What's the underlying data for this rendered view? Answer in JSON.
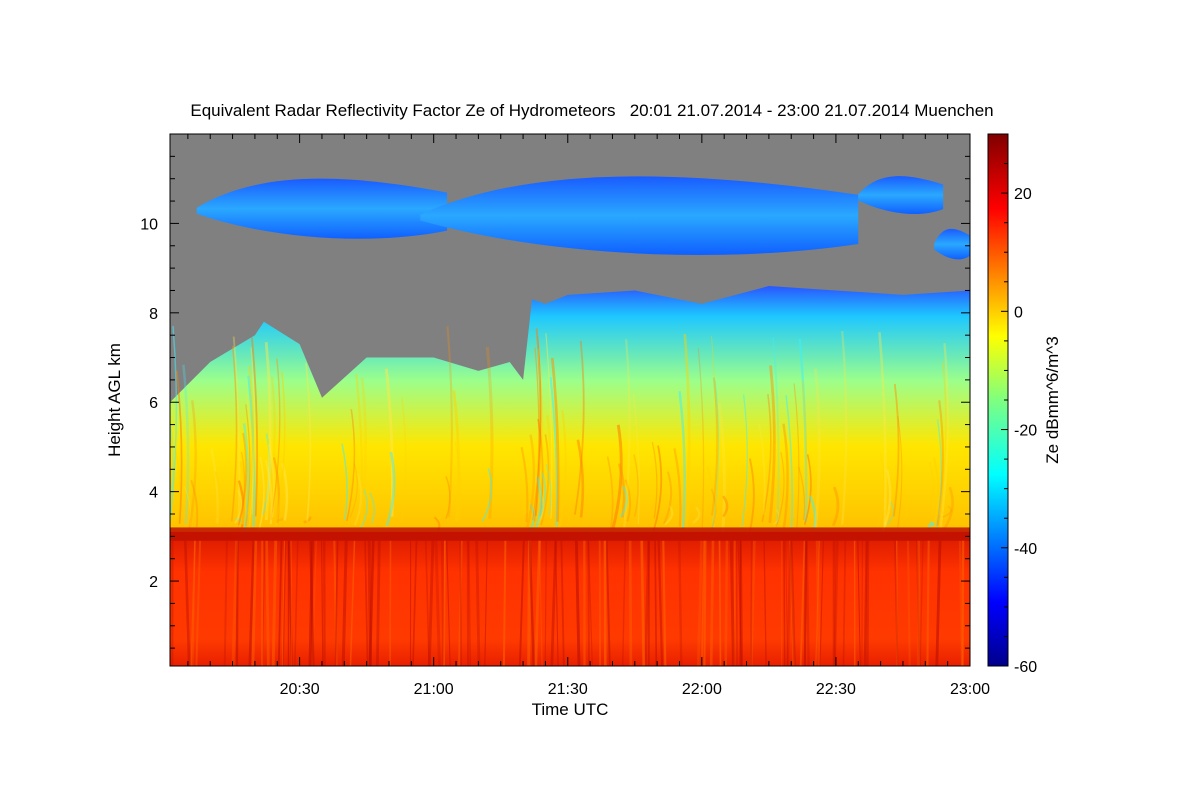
{
  "chart_data": {
    "type": "heatmap",
    "title": "Equivalent Radar Reflectivity Factor Ze of Hydrometeors   20:01 21.07.2014 - 23:00 21.07.2014 Muenchen",
    "xlabel": "Time UTC",
    "ylabel": "Height AGL km",
    "xlim": [
      "20:01",
      "23:00"
    ],
    "ylim": [
      0.1,
      12
    ],
    "x_ticks": [
      "20:30",
      "21:00",
      "21:30",
      "22:00",
      "22:30",
      "23:00"
    ],
    "y_ticks": [
      "2",
      "4",
      "6",
      "8",
      "10"
    ],
    "colorbar": {
      "label": "Ze dBmm^6/m^3",
      "range": [
        -60,
        30
      ],
      "ticks": [
        "20",
        "0",
        "-20",
        "-40",
        "-60"
      ],
      "colormap": "jet",
      "no_signal_color": "#808080"
    },
    "layers": [
      {
        "name": "rain",
        "height_km": [
          0.1,
          3.1
        ],
        "ze_dbz": 23
      },
      {
        "name": "melting-layer-bright-band",
        "height_km": [
          2.9,
          3.2
        ],
        "ze_dbz": 26
      },
      {
        "name": "ice-cloud",
        "height_km": [
          3.1,
          8.5
        ],
        "ze_dbz": [
          10,
          -30
        ]
      },
      {
        "name": "cirrus",
        "height_km": [
          9.3,
          11.3
        ],
        "ze_dbz": -35
      }
    ],
    "cloud_top_km": {
      "time": [
        "20:01",
        "20:10",
        "20:20",
        "20:22",
        "20:30",
        "20:35",
        "20:45",
        "21:00",
        "21:10",
        "21:17",
        "21:20",
        "21:22",
        "21:25",
        "21:30",
        "21:45",
        "22:00",
        "22:15",
        "22:30",
        "22:45",
        "23:00"
      ],
      "height": [
        6.0,
        6.9,
        7.5,
        7.8,
        7.3,
        6.1,
        7.0,
        7.0,
        6.7,
        6.9,
        6.5,
        8.3,
        8.2,
        8.4,
        8.5,
        8.2,
        8.6,
        8.5,
        8.4,
        8.5
      ]
    },
    "cirrus_segments": [
      {
        "time": [
          "20:07",
          "21:03"
        ],
        "height_km": [
          9.5,
          11.2
        ]
      },
      {
        "time": [
          "20:57",
          "22:35"
        ],
        "height_km": [
          9.1,
          11.3
        ]
      },
      {
        "time": [
          "22:35",
          "22:54"
        ],
        "height_km": [
          10.1,
          11.2
        ]
      },
      {
        "time": [
          "22:52",
          "23:00"
        ],
        "height_km": [
          9.1,
          10.0
        ]
      }
    ]
  }
}
